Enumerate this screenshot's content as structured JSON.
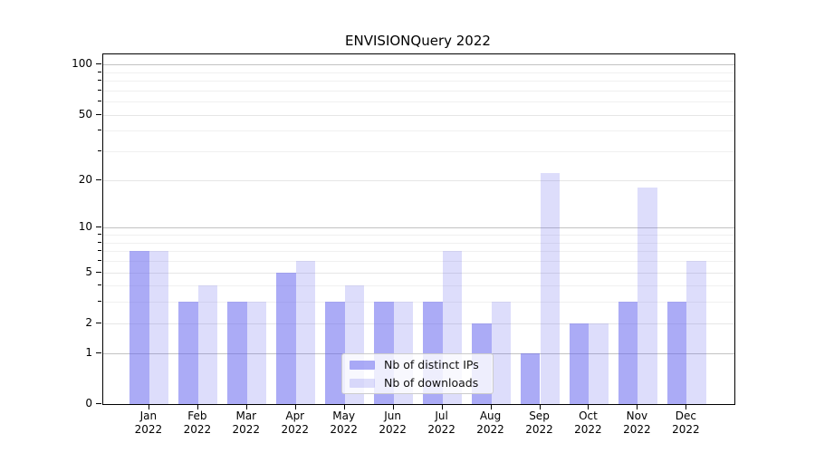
{
  "chart_data": {
    "type": "bar",
    "title": "ENVISIONQuery 2022",
    "x_months": [
      "Jan",
      "Feb",
      "Mar",
      "Apr",
      "May",
      "Jun",
      "Jul",
      "Aug",
      "Sep",
      "Oct",
      "Nov",
      "Dec"
    ],
    "x_year": "2022",
    "categories": [
      "Jan 2022",
      "Feb 2022",
      "Mar 2022",
      "Apr 2022",
      "May 2022",
      "Jun 2022",
      "Jul 2022",
      "Aug 2022",
      "Sep 2022",
      "Oct 2022",
      "Nov 2022",
      "Dec 2022"
    ],
    "series": [
      {
        "name": "Nb of distinct IPs",
        "color": "rgba(102,102,238,0.55)",
        "values": [
          7,
          3,
          3,
          5,
          3,
          3,
          3,
          2,
          1,
          2,
          3,
          3
        ]
      },
      {
        "name": "Nb of downloads",
        "color": "rgba(102,102,238,0.22)",
        "values": [
          7,
          4,
          3,
          6,
          4,
          3,
          7,
          3,
          22,
          2,
          18,
          6
        ]
      }
    ],
    "y_ticks": [
      0,
      1,
      2,
      5,
      10,
      20,
      50,
      100
    ],
    "y_scale": "log1p",
    "ylim": [
      0,
      115
    ],
    "grid": true,
    "legend_position": "lower center",
    "accent_color": "#6666ee"
  }
}
